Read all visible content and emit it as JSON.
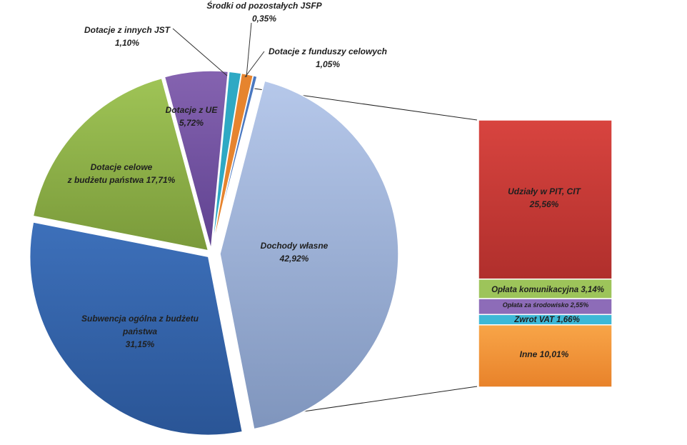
{
  "chart_data": {
    "type": "pie",
    "title": "",
    "slices": [
      {
        "label": "Dochody własne",
        "value": 42.92,
        "display": "42,92%",
        "color": "#a7bde3"
      },
      {
        "label": "Subwencja ogólna z budżetu państwa",
        "value": 31.15,
        "display": "31,15%",
        "color": "#3f6fb4"
      },
      {
        "label": "Dotacje celowe z budżetu państwa",
        "value": 17.71,
        "display": "17,71%",
        "color": "#93b64c"
      },
      {
        "label": "Dotacje z UE",
        "value": 5.72,
        "display": "5,72%",
        "color": "#7b59a5"
      },
      {
        "label": "Dotacje z innych JST",
        "value": 1.1,
        "display": "1,10%",
        "color": "#2ea9c4"
      },
      {
        "label": "Dotacje z funduszy celowych",
        "value": 1.05,
        "display": "1,05%",
        "color": "#e6842e"
      },
      {
        "label": "Środki od pozostałych JSFP",
        "value": 0.35,
        "display": "0,35%",
        "color": "#4a78c0"
      }
    ],
    "breakdown": {
      "of": "Dochody własne",
      "segments": [
        {
          "label": "Udziały w PIT, CIT",
          "value": 25.56,
          "display": "25,56%",
          "color": "#d13f3c"
        },
        {
          "label": "Opłata komunikacyjna",
          "value": 3.14,
          "display": "3,14%",
          "color": "#9dc45a"
        },
        {
          "label": "Opłata za środowisko",
          "value": 2.55,
          "display": "2,55%",
          "color": "#8d6cb8"
        },
        {
          "label": "Zwrot VAT",
          "value": 1.66,
          "display": "1,66%",
          "color": "#3db8d6"
        },
        {
          "label": "Inne",
          "value": 10.01,
          "display": "10,01%",
          "color": "#f59a3d"
        }
      ]
    }
  },
  "labels": {
    "dochody_wlasne": {
      "name": "Dochody własne",
      "value": "42,92%"
    },
    "subwencja": {
      "line1": "Subwencja ogólna z budżetu",
      "line2": "państwa",
      "value": "31,15%"
    },
    "dotacje_celowe": {
      "line1": "Dotacje celowe",
      "line2": "z budżetu państwa 17,71%"
    },
    "dotacje_ue": {
      "name": "Dotacje z UE",
      "value": "5,72%"
    },
    "dotacje_jst": {
      "name": "Dotacje z innych JST",
      "value": "1,10%"
    },
    "srodki_jsfp": {
      "name": "Środki od pozostałych JSFP",
      "value": "0,35%"
    },
    "dotacje_fundusze": {
      "name": "Dotacje z funduszy celowych",
      "value": "1,05%"
    },
    "bar_pit": {
      "name": "Udziały w PIT, CIT",
      "value": "25,56%"
    },
    "bar_komunikacyjna": "Opłata komunikacyjna 3,14%",
    "bar_srodowisko": "Opłata za środowisko 2,55%",
    "bar_vat": "Zwrot VAT 1,66%",
    "bar_inne": "Inne 10,01%"
  }
}
